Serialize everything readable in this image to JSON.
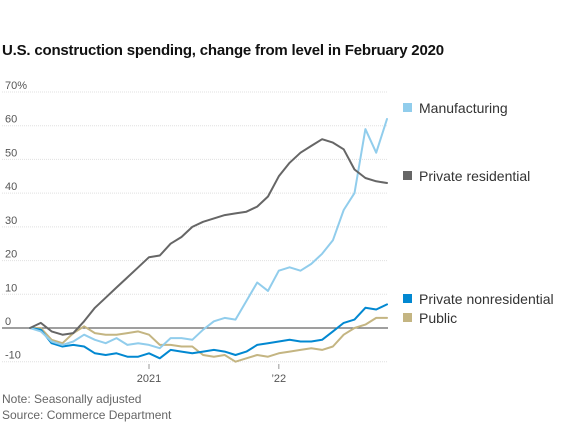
{
  "title": "U.S. construction spending, change from level in February 2020",
  "note": "Note: Seasonally adjusted",
  "source": "Source: Commerce Department",
  "chart_data": {
    "type": "line",
    "y_unit": "%",
    "ylim": [
      -10,
      70
    ],
    "y_ticks": [
      70,
      60,
      50,
      40,
      30,
      20,
      10,
      0,
      -10
    ],
    "y_tick_labels": [
      "70%",
      "60",
      "50",
      "40",
      "30",
      "20",
      "10",
      "0",
      "-10"
    ],
    "x_tick_labels": [
      {
        "label": "2021",
        "month_index": 11
      },
      {
        "label": "’22",
        "month_index": 23
      }
    ],
    "x_start_label": "Feb 2020",
    "grid": true,
    "legend_placement": "right",
    "series": [
      {
        "name": "Manufacturing",
        "color": "#91cdec",
        "values": [
          0,
          -1,
          -4,
          -5,
          -4,
          -2,
          -3.5,
          -4.5,
          -3,
          -5,
          -4.5,
          -5,
          -6,
          -3,
          -3,
          -3.5,
          -0.5,
          2,
          3,
          2.5,
          8,
          13.5,
          11,
          17,
          18,
          17,
          19,
          22,
          26,
          35,
          40,
          59,
          52,
          62
        ]
      },
      {
        "name": "Private residential",
        "color": "#666666",
        "values": [
          0,
          1.5,
          -1,
          -2,
          -1.5,
          2,
          6,
          9,
          12,
          15,
          18,
          21,
          21.5,
          25,
          27,
          30,
          31.5,
          32.5,
          33.5,
          34,
          34.5,
          36,
          39,
          45,
          49,
          52,
          54,
          56,
          55,
          53,
          47,
          44.5,
          43.5,
          43
        ]
      },
      {
        "name": "Private nonresidential",
        "color": "#0288d1",
        "values": [
          0,
          -0.5,
          -4.5,
          -5.5,
          -5,
          -5.5,
          -7.5,
          -8,
          -7.5,
          -8.5,
          -8.5,
          -7.5,
          -9,
          -6.5,
          -7,
          -7.5,
          -7,
          -6.5,
          -7,
          -8,
          -7,
          -5,
          -4.5,
          -4,
          -3.5,
          -4,
          -4,
          -3.5,
          -1,
          1.5,
          2.5,
          6,
          5.5,
          7
        ]
      },
      {
        "name": "Public",
        "color": "#c4b582",
        "values": [
          0,
          0,
          -3.5,
          -4.5,
          -1.5,
          0.5,
          -1.5,
          -2,
          -2,
          -1.5,
          -1,
          -2,
          -5,
          -5,
          -5.5,
          -5.5,
          -8,
          -8.5,
          -8,
          -10,
          -9,
          -8,
          -8.5,
          -7.5,
          -7,
          -6.5,
          -6,
          -6.5,
          -5.5,
          -2,
          0,
          1,
          3,
          3
        ]
      }
    ]
  }
}
